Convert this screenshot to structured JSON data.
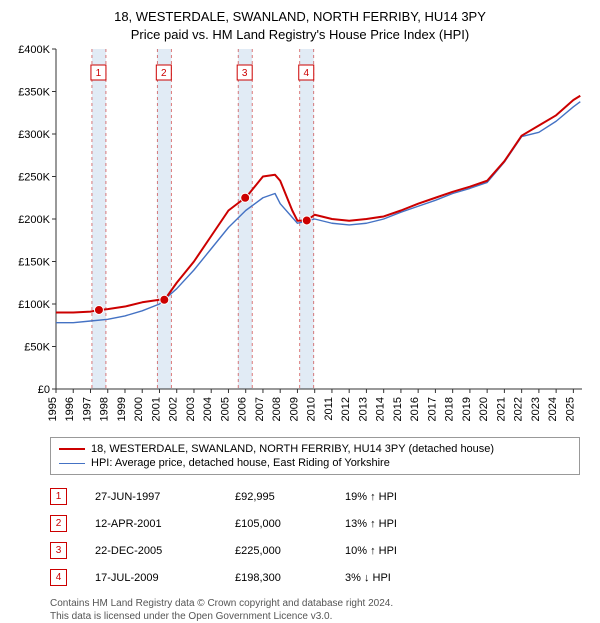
{
  "title_line1": "18, WESTERDALE, SWANLAND, NORTH FERRIBY, HU14 3PY",
  "title_line2": "Price paid vs. HM Land Registry's House Price Index (HPI)",
  "chart": {
    "type": "line",
    "background_color": "#ffffff",
    "xlim": [
      1995,
      2025.5
    ],
    "ylim": [
      0,
      400000
    ],
    "ytick_step": 50000,
    "yticks_labels": [
      "£0",
      "£50K",
      "£100K",
      "£150K",
      "£200K",
      "£250K",
      "£300K",
      "£350K",
      "£400K"
    ],
    "x_years": [
      1995,
      1996,
      1997,
      1998,
      1999,
      2000,
      2001,
      2002,
      2003,
      2004,
      2005,
      2006,
      2007,
      2008,
      2009,
      2010,
      2011,
      2012,
      2013,
      2014,
      2015,
      2016,
      2017,
      2018,
      2019,
      2020,
      2021,
      2022,
      2023,
      2024,
      2025
    ],
    "ytick_fontsize": 11,
    "xtick_fontsize": 11,
    "axis_color": "#333333",
    "grid_color": "#dddddd",
    "major_grid": false,
    "vline_dash_color": "#cc4444",
    "vline_band_color": "#d9e6f2",
    "series": [
      {
        "name": "property",
        "label": "18, WESTERDALE, SWANLAND, NORTH FERRIBY, HU14 3PY (detached house)",
        "color": "#cc0000",
        "line_width": 2.0,
        "x": [
          1995,
          1996,
          1997,
          1997.5,
          1998,
          1999,
          2000,
          2001,
          2001.3,
          2002,
          2003,
          2004,
          2005,
          2005.97,
          2006,
          2007,
          2007.7,
          2008,
          2008.7,
          2009,
          2009.55,
          2010,
          2011,
          2012,
          2013,
          2014,
          2015,
          2016,
          2017,
          2018,
          2019,
          2020,
          2021,
          2022,
          2023,
          2024,
          2025,
          2025.4
        ],
        "y": [
          90000,
          90000,
          91000,
          92995,
          94000,
          97000,
          102000,
          105000,
          105000,
          125000,
          150000,
          180000,
          210000,
          225000,
          225000,
          250000,
          252000,
          245000,
          210000,
          198000,
          198300,
          205000,
          200000,
          198000,
          200000,
          203000,
          210000,
          218000,
          225000,
          232000,
          238000,
          245000,
          268000,
          298000,
          310000,
          322000,
          340000,
          345000
        ]
      },
      {
        "name": "hpi",
        "label": "HPI: Average price, detached house, East Riding of Yorkshire",
        "color": "#4472c4",
        "line_width": 1.4,
        "x": [
          1995,
          1996,
          1997,
          1998,
          1999,
          2000,
          2001,
          2002,
          2003,
          2004,
          2005,
          2006,
          2007,
          2007.7,
          2008,
          2009,
          2010,
          2011,
          2012,
          2013,
          2014,
          2015,
          2016,
          2017,
          2018,
          2019,
          2020,
          2021,
          2022,
          2023,
          2024,
          2025,
          2025.4
        ],
        "y": [
          78000,
          78000,
          80000,
          82000,
          86000,
          92000,
          100000,
          118000,
          140000,
          165000,
          190000,
          210000,
          225000,
          230000,
          218000,
          195000,
          200000,
          195000,
          193000,
          195000,
          200000,
          208000,
          215000,
          222000,
          230000,
          236000,
          243000,
          267000,
          297000,
          302000,
          315000,
          332000,
          338000
        ]
      }
    ],
    "sale_markers": [
      {
        "n": "1",
        "x": 1997.49,
        "y": 92995
      },
      {
        "n": "2",
        "x": 2001.28,
        "y": 105000
      },
      {
        "n": "3",
        "x": 2005.97,
        "y": 225000
      },
      {
        "n": "4",
        "x": 2009.54,
        "y": 198300
      }
    ]
  },
  "legend": {
    "line1_color": "#cc0000",
    "line2_color": "#4472c4"
  },
  "sales": [
    {
      "n": "1",
      "date": "27-JUN-1997",
      "price": "£92,995",
      "diff": "19% ↑ HPI"
    },
    {
      "n": "2",
      "date": "12-APR-2001",
      "price": "£105,000",
      "diff": "13% ↑ HPI"
    },
    {
      "n": "3",
      "date": "22-DEC-2005",
      "price": "£225,000",
      "diff": "10% ↑ HPI"
    },
    {
      "n": "4",
      "date": "17-JUL-2009",
      "price": "£198,300",
      "diff": "3% ↓ HPI"
    }
  ],
  "footer_line1": "Contains HM Land Registry data © Crown copyright and database right 2024.",
  "footer_line2": "This data is licensed under the Open Government Licence v3.0.",
  "marker_border_color": "#cc0000",
  "marker_text_color": "#cc0000"
}
